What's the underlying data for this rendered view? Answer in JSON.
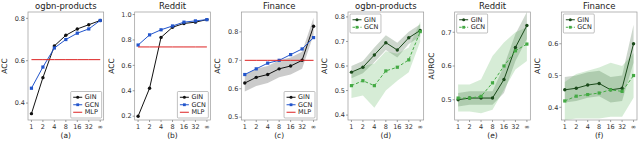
{
  "chart_data": [
    {
      "type": "line",
      "title": "ogbn-products",
      "y_label": "ACC",
      "x_label": "(a)",
      "categories": [
        "1",
        "2",
        "4",
        "8",
        "16",
        "32",
        "∞"
      ],
      "ylim": [
        0.32,
        0.83
      ],
      "yticks": [
        0.4,
        0.6,
        0.8
      ],
      "grid": false,
      "legend": "lower right",
      "series": [
        {
          "name": "GIN",
          "color": "#111111",
          "marker": "circle",
          "line_style": "solid",
          "values": [
            0.35,
            0.52,
            0.67,
            0.72,
            0.75,
            0.77,
            0.79
          ]
        },
        {
          "name": "GCN",
          "color": "#2255cc",
          "marker": "square",
          "line_style": "solid",
          "values": [
            0.47,
            0.57,
            0.66,
            0.7,
            0.73,
            0.75,
            0.79
          ]
        },
        {
          "name": "MLP",
          "color": "#dd2222",
          "marker": "none",
          "line_style": "solid",
          "values": [
            0.605,
            0.605,
            0.605,
            0.605,
            0.605,
            0.605,
            0.605
          ]
        }
      ]
    },
    {
      "type": "line",
      "title": "Reddit",
      "y_label": "ACC",
      "x_label": "(b)",
      "categories": [
        "1",
        "2",
        "4",
        "8",
        "16",
        "32",
        "∞"
      ],
      "ylim": [
        0.17,
        1.02
      ],
      "yticks": [
        0.2,
        0.4,
        0.6,
        0.8,
        {
          "value": 1.0,
          "label": "1.0"
        }
      ],
      "grid": false,
      "legend": "lower right",
      "series": [
        {
          "name": "GIN",
          "color": "#111111",
          "marker": "circle",
          "line_style": "solid",
          "values": [
            0.2,
            0.42,
            0.82,
            0.9,
            0.93,
            0.94,
            0.96
          ]
        },
        {
          "name": "GCN",
          "color": "#2255cc",
          "marker": "square",
          "line_style": "solid",
          "values": [
            0.76,
            0.84,
            0.88,
            0.91,
            0.94,
            0.95,
            0.96
          ]
        },
        {
          "name": "MLP",
          "color": "#dd2222",
          "marker": "none",
          "line_style": "solid",
          "values": [
            0.745,
            0.745,
            0.745,
            0.745,
            0.745,
            0.745,
            0.745
          ]
        }
      ]
    },
    {
      "type": "line",
      "title": "Finance",
      "y_label": "ACC",
      "x_label": "(c)",
      "categories": [
        "1",
        "2",
        "4",
        "8",
        "16",
        "32",
        "∞"
      ],
      "ylim": [
        0.49,
        0.87
      ],
      "yticks": [
        0.5,
        0.6,
        0.7,
        0.8
      ],
      "grid": false,
      "legend": "lower right",
      "series": [
        {
          "name": "GIN",
          "color": "#111111",
          "marker": "circle",
          "line_style": "solid",
          "values": [
            0.62,
            0.64,
            0.65,
            0.67,
            0.68,
            0.7,
            0.82
          ],
          "std": [
            0.03,
            0.03,
            0.03,
            0.03,
            0.03,
            0.03,
            0.03
          ]
        },
        {
          "name": "GCN",
          "color": "#2255cc",
          "marker": "square",
          "line_style": "solid",
          "values": [
            0.65,
            0.67,
            0.69,
            0.7,
            0.72,
            0.74,
            0.78
          ]
        },
        {
          "name": "MLP",
          "color": "#dd2222",
          "marker": "none",
          "line_style": "solid",
          "values": [
            0.7,
            0.7,
            0.7,
            0.7,
            0.7,
            0.7,
            0.7
          ]
        }
      ]
    },
    {
      "type": "line",
      "title": "ogbn-products",
      "y_label": "AUC",
      "x_label": "(d)",
      "categories": [
        "1",
        "2",
        "4",
        "8",
        "16",
        "32",
        "∞"
      ],
      "ylim": [
        0.38,
        0.82
      ],
      "yticks": [
        0.4,
        0.5,
        0.6,
        0.7,
        0.8
      ],
      "grid": false,
      "legend": "upper left",
      "series": [
        {
          "name": "GIN",
          "color": "#1a4a1a",
          "marker": "circle",
          "line_style": "solid",
          "values": [
            0.575,
            0.595,
            0.645,
            0.695,
            0.665,
            0.715,
            0.745
          ],
          "std": [
            0.025,
            0.025,
            0.03,
            0.03,
            0.03,
            0.025,
            0.025
          ]
        },
        {
          "name": "GCN",
          "color": "#44aa44",
          "marker": "square",
          "line_style": "dashed",
          "values": [
            0.52,
            0.54,
            0.52,
            0.58,
            0.595,
            0.625,
            0.74
          ],
          "std": [
            0.05,
            0.06,
            0.09,
            0.08,
            0.055,
            0.05,
            0.04
          ]
        }
      ]
    },
    {
      "type": "line",
      "title": "Reddit",
      "y_label": "AUROC",
      "x_label": "(e)",
      "categories": [
        "1",
        "2",
        "4",
        "8",
        "16",
        "32",
        "∞"
      ],
      "ylim": [
        0.44,
        0.76
      ],
      "yticks": [
        0.5,
        0.6,
        0.7
      ],
      "grid": false,
      "legend": "upper left",
      "series": [
        {
          "name": "GIN",
          "color": "#1a4a1a",
          "marker": "circle",
          "line_style": "solid",
          "values": [
            0.5,
            0.505,
            0.505,
            0.505,
            0.56,
            0.655,
            0.72
          ],
          "std": [
            0.02,
            0.02,
            0.02,
            0.02,
            0.04,
            0.04,
            0.04
          ]
        },
        {
          "name": "GCN",
          "color": "#44aa44",
          "marker": "square",
          "line_style": "dashed",
          "values": [
            0.505,
            0.505,
            0.51,
            0.55,
            0.6,
            0.645,
            0.665
          ],
          "std": [
            0.04,
            0.04,
            0.05,
            0.08,
            0.07,
            0.055,
            0.05
          ]
        }
      ]
    },
    {
      "type": "line",
      "title": "Finance",
      "y_label": "AUC",
      "x_label": "(f)",
      "categories": [
        "1",
        "2",
        "4",
        "8",
        "16",
        "32",
        "∞"
      ],
      "ylim": [
        0.36,
        0.7
      ],
      "yticks": [
        0.4,
        0.5,
        0.6
      ],
      "grid": false,
      "legend": "upper left",
      "series": [
        {
          "name": "GIN",
          "color": "#1a4a1a",
          "marker": "circle",
          "line_style": "solid",
          "values": [
            0.455,
            0.46,
            0.47,
            0.475,
            0.455,
            0.46,
            0.6
          ],
          "std": [
            0.04,
            0.04,
            0.04,
            0.04,
            0.04,
            0.04,
            0.06
          ]
        },
        {
          "name": "GCN",
          "color": "#44aa44",
          "marker": "square",
          "line_style": "dashed",
          "values": [
            0.42,
            0.435,
            0.44,
            0.445,
            0.455,
            0.45,
            0.5
          ],
          "std": [
            0.06,
            0.07,
            0.075,
            0.08,
            0.085,
            0.08,
            0.07
          ]
        }
      ]
    }
  ]
}
